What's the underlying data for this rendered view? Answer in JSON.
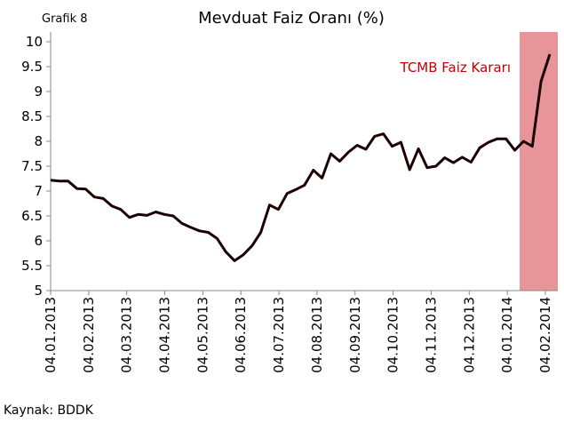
{
  "chart_data": {
    "type": "line",
    "title": "Mevduat Faiz Oranı (%)",
    "label": "Grafik 8",
    "source": "Kaynak: BDDK",
    "annotation": "TCMB Faiz Kararı",
    "xticks": [
      "04.01.2013",
      "04.02.2013",
      "04.03.2013",
      "04.04.2013",
      "04.05.2013",
      "04.06.2013",
      "04.07.2013",
      "04.08.2013",
      "04.09.2013",
      "04.10.2013",
      "04.11.2013",
      "04.12.2013",
      "04.01.2014",
      "04.02.2014"
    ],
    "color": "#1a0000",
    "values": [
      7.22,
      7.2,
      7.2,
      7.05,
      7.04,
      6.88,
      6.85,
      6.7,
      6.63,
      6.47,
      6.53,
      6.51,
      6.58,
      6.53,
      6.5,
      6.35,
      6.27,
      6.2,
      6.17,
      6.05,
      5.78,
      5.6,
      5.72,
      5.9,
      6.17,
      6.72,
      6.63,
      6.95,
      7.03,
      7.12,
      7.42,
      7.26,
      7.75,
      7.6,
      7.78,
      7.92,
      7.84,
      8.1,
      8.15,
      7.9,
      7.98,
      7.43,
      7.85,
      7.47,
      7.5,
      7.67,
      7.57,
      7.68,
      7.58,
      7.87,
      7.98,
      8.05,
      8.05,
      7.82,
      8.0,
      7.9,
      9.2,
      9.75
    ],
    "ylim": [
      5,
      10
    ],
    "yticks": [
      5,
      5.5,
      6,
      6.5,
      7,
      7.5,
      8,
      8.5,
      9,
      9.5,
      10
    ]
  }
}
